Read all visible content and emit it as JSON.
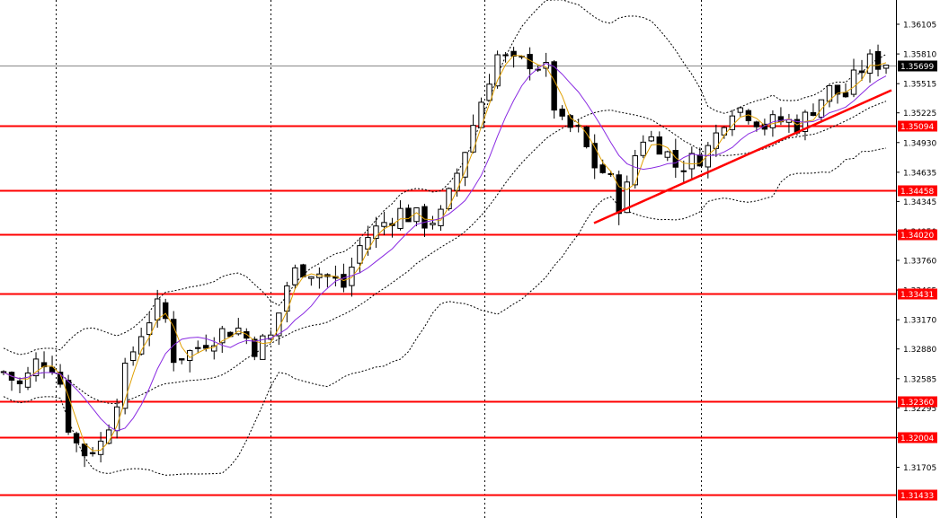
{
  "chart_data": {
    "type": "candlestick",
    "title": "",
    "xlabel": "",
    "ylabel": "",
    "ylim": [
      1.31433,
      1.3625
    ],
    "grid": "vertical-dotted",
    "y_ticks": [
      "1.36105",
      "1.35810",
      "1.35515",
      "1.35225",
      "1.34930",
      "1.34635",
      "1.34345",
      "1.34050",
      "1.33760",
      "1.33465",
      "1.33170",
      "1.32880",
      "1.32585",
      "1.32295",
      "1.32000",
      "1.31705"
    ],
    "current_price": {
      "value": 1.35699,
      "label": "1.35699"
    },
    "levels": [
      {
        "value": 1.35094,
        "label": "1.35094"
      },
      {
        "value": 1.34458,
        "label": "1.34458"
      },
      {
        "value": 1.3402,
        "label": "1.34020"
      },
      {
        "value": 1.33431,
        "label": "1.33431"
      },
      {
        "value": 1.3236,
        "label": "1.32360"
      },
      {
        "value": 1.32004,
        "label": "1.32004"
      },
      {
        "value": 1.31433,
        "label": "1.31433"
      }
    ],
    "trendline": {
      "from": [
        0.663,
        1.3413
      ],
      "to": [
        0.995,
        1.3545
      ]
    },
    "indicators": [
      "bollinger-bands",
      "ma-fast",
      "ma-slow"
    ],
    "colors": {
      "levels": "#ff0000",
      "trendline": "#ff0000",
      "ma_fast": "#e0a000",
      "ma_slow": "#8a2be2",
      "bands": "#000000",
      "current_price_bg": "#000000",
      "level_label_bg": "#ff0000"
    },
    "close_path": [
      [
        0.0,
        1.3265
      ],
      [
        0.02,
        1.325
      ],
      [
        0.04,
        1.328
      ],
      [
        0.06,
        1.327
      ],
      [
        0.075,
        1.32
      ],
      [
        0.09,
        1.3185
      ],
      [
        0.11,
        1.3195
      ],
      [
        0.13,
        1.325
      ],
      [
        0.15,
        1.33
      ],
      [
        0.17,
        1.333
      ],
      [
        0.18,
        1.332
      ],
      [
        0.19,
        1.328
      ],
      [
        0.21,
        1.3285
      ],
      [
        0.23,
        1.33
      ],
      [
        0.26,
        1.331
      ],
      [
        0.28,
        1.329
      ],
      [
        0.3,
        1.33
      ],
      [
        0.315,
        1.335
      ],
      [
        0.33,
        1.337
      ],
      [
        0.35,
        1.3365
      ],
      [
        0.38,
        1.335
      ],
      [
        0.4,
        1.3395
      ],
      [
        0.42,
        1.341
      ],
      [
        0.44,
        1.3425
      ],
      [
        0.47,
        1.3415
      ],
      [
        0.49,
        1.342
      ],
      [
        0.505,
        1.346
      ],
      [
        0.52,
        1.35
      ],
      [
        0.535,
        1.354
      ],
      [
        0.55,
        1.358
      ],
      [
        0.57,
        1.357
      ],
      [
        0.59,
        1.3575
      ],
      [
        0.605,
        1.3565
      ],
      [
        0.62,
        1.351
      ],
      [
        0.64,
        1.3505
      ],
      [
        0.66,
        1.347
      ],
      [
        0.675,
        1.346
      ],
      [
        0.69,
        1.3425
      ],
      [
        0.71,
        1.35
      ],
      [
        0.73,
        1.3495
      ],
      [
        0.75,
        1.347
      ],
      [
        0.77,
        1.3475
      ],
      [
        0.79,
        1.349
      ],
      [
        0.81,
        1.353
      ],
      [
        0.83,
        1.3525
      ],
      [
        0.85,
        1.351
      ],
      [
        0.87,
        1.3515
      ],
      [
        0.89,
        1.351
      ],
      [
        0.9,
        1.3525
      ],
      [
        0.92,
        1.3545
      ],
      [
        0.94,
        1.354
      ],
      [
        0.955,
        1.3565
      ],
      [
        0.97,
        1.3575
      ],
      [
        0.985,
        1.357
      ]
    ]
  }
}
